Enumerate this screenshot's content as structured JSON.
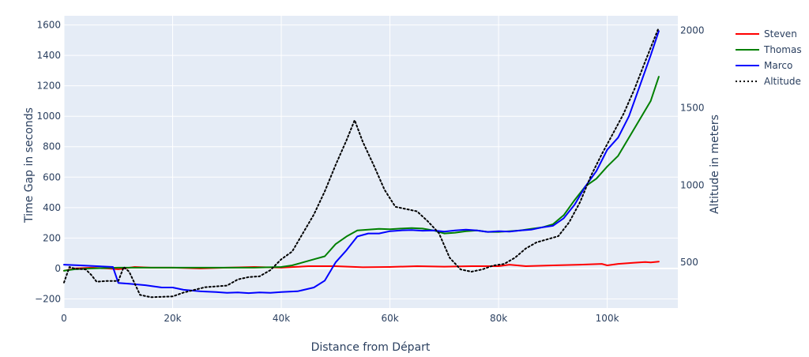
{
  "chart_data": {
    "type": "line",
    "title": "",
    "xlabel": "Distance from Départ",
    "ylabel": "Time Gap in seconds",
    "y2label": "Altitude in meters",
    "xlim": [
      0,
      113000
    ],
    "ylim": [
      -260,
      1660
    ],
    "y2lim": [
      205,
      2095
    ],
    "x_ticks": [
      0,
      20000,
      40000,
      60000,
      80000,
      100000
    ],
    "x_tick_labels": [
      "0",
      "20k",
      "40k",
      "60k",
      "80k",
      "100k"
    ],
    "y_ticks": [
      -200,
      0,
      200,
      400,
      600,
      800,
      1000,
      1200,
      1400,
      1600
    ],
    "y_tick_labels": [
      "−200",
      "0",
      "200",
      "400",
      "600",
      "800",
      "1000",
      "1200",
      "1400",
      "1600"
    ],
    "y2_ticks": [
      500,
      1000,
      1500,
      2000
    ],
    "y2_tick_labels": [
      "500",
      "1000",
      "1500",
      "2000"
    ],
    "grid": true,
    "legend_position": "top-right",
    "colors": {
      "plot_bg": "#e5ecf6",
      "grid": "#ffffff",
      "text": "#2a3f5f"
    },
    "series": [
      {
        "name": "Steven",
        "color": "#ff0000",
        "axis": "y",
        "dash": "solid",
        "x": [
          0,
          2000,
          5000,
          8000,
          10000,
          13000,
          16000,
          20000,
          25000,
          30000,
          35000,
          40000,
          45000,
          50000,
          55000,
          60000,
          65000,
          70000,
          75000,
          80000,
          82000,
          85000,
          90000,
          95000,
          99000,
          100000,
          102000,
          105000,
          107000,
          108000,
          109500
        ],
        "y": [
          -15,
          0,
          5,
          0,
          -5,
          10,
          5,
          5,
          0,
          5,
          10,
          5,
          15,
          15,
          8,
          10,
          15,
          12,
          15,
          15,
          25,
          15,
          20,
          25,
          30,
          20,
          30,
          38,
          42,
          40,
          45
        ]
      },
      {
        "name": "Thomas",
        "color": "#008000",
        "axis": "y",
        "dash": "solid",
        "x": [
          0,
          2000,
          5000,
          10000,
          15000,
          20000,
          25000,
          30000,
          35000,
          40000,
          42000,
          44000,
          46000,
          48000,
          50000,
          52000,
          54000,
          56000,
          58000,
          60000,
          62000,
          64000,
          66000,
          68000,
          70000,
          72000,
          74000,
          76000,
          78000,
          80000,
          82000,
          84000,
          86000,
          88000,
          90000,
          92000,
          94000,
          96000,
          98000,
          100000,
          102000,
          104000,
          106000,
          108000,
          109500
        ],
        "y": [
          -15,
          -5,
          0,
          5,
          5,
          5,
          5,
          5,
          5,
          10,
          20,
          40,
          60,
          80,
          160,
          210,
          250,
          255,
          260,
          258,
          262,
          265,
          262,
          250,
          230,
          235,
          245,
          250,
          240,
          240,
          245,
          250,
          260,
          270,
          290,
          350,
          450,
          540,
          590,
          670,
          740,
          860,
          980,
          1100,
          1260
        ]
      },
      {
        "name": "Marco",
        "color": "#0000ff",
        "axis": "y",
        "dash": "solid",
        "x": [
          0,
          3000,
          6000,
          9000,
          10000,
          12000,
          15000,
          18000,
          20000,
          22000,
          25000,
          28000,
          30000,
          32000,
          34000,
          36000,
          38000,
          40000,
          43000,
          46000,
          48000,
          50000,
          52000,
          54000,
          56000,
          58000,
          60000,
          62000,
          64000,
          66000,
          68000,
          70000,
          72000,
          74000,
          76000,
          78000,
          80000,
          82000,
          84000,
          86000,
          88000,
          90000,
          92000,
          94000,
          96000,
          98000,
          100000,
          102000,
          104000,
          106000,
          108000,
          109500
        ],
        "y": [
          25,
          20,
          15,
          10,
          -95,
          -100,
          -110,
          -125,
          -125,
          -140,
          -150,
          -155,
          -160,
          -158,
          -162,
          -158,
          -160,
          -155,
          -150,
          -125,
          -80,
          40,
          120,
          210,
          230,
          230,
          245,
          250,
          252,
          248,
          250,
          242,
          250,
          255,
          250,
          240,
          245,
          242,
          250,
          255,
          270,
          280,
          330,
          420,
          540,
          640,
          780,
          860,
          1000,
          1200,
          1400,
          1560
        ]
      },
      {
        "name": "Altitude",
        "color": "#000000",
        "axis": "y2",
        "dash": "dot",
        "x": [
          0,
          1000,
          2000,
          4000,
          5000,
          6000,
          8000,
          10000,
          11000,
          12000,
          14000,
          16000,
          20000,
          22000,
          26000,
          30000,
          32000,
          34000,
          36000,
          38000,
          40000,
          42000,
          44000,
          46000,
          48000,
          50000,
          52000,
          53500,
          55000,
          57000,
          59000,
          61000,
          63000,
          65000,
          67000,
          69000,
          71000,
          73000,
          75000,
          77000,
          79000,
          81000,
          83000,
          85000,
          87000,
          89000,
          91000,
          93000,
          95000,
          97000,
          99000,
          101000,
          103000,
          105000,
          107000,
          109500
        ],
        "y": [
          370,
          470,
          460,
          455,
          420,
          375,
          380,
          380,
          470,
          440,
          290,
          275,
          280,
          305,
          340,
          350,
          390,
          405,
          410,
          450,
          520,
          570,
          690,
          810,
          960,
          1130,
          1290,
          1420,
          1280,
          1130,
          970,
          860,
          845,
          830,
          765,
          690,
          530,
          455,
          440,
          455,
          480,
          490,
          530,
          590,
          630,
          650,
          670,
          760,
          890,
          1060,
          1200,
          1330,
          1460,
          1620,
          1800,
          2020
        ]
      }
    ]
  }
}
